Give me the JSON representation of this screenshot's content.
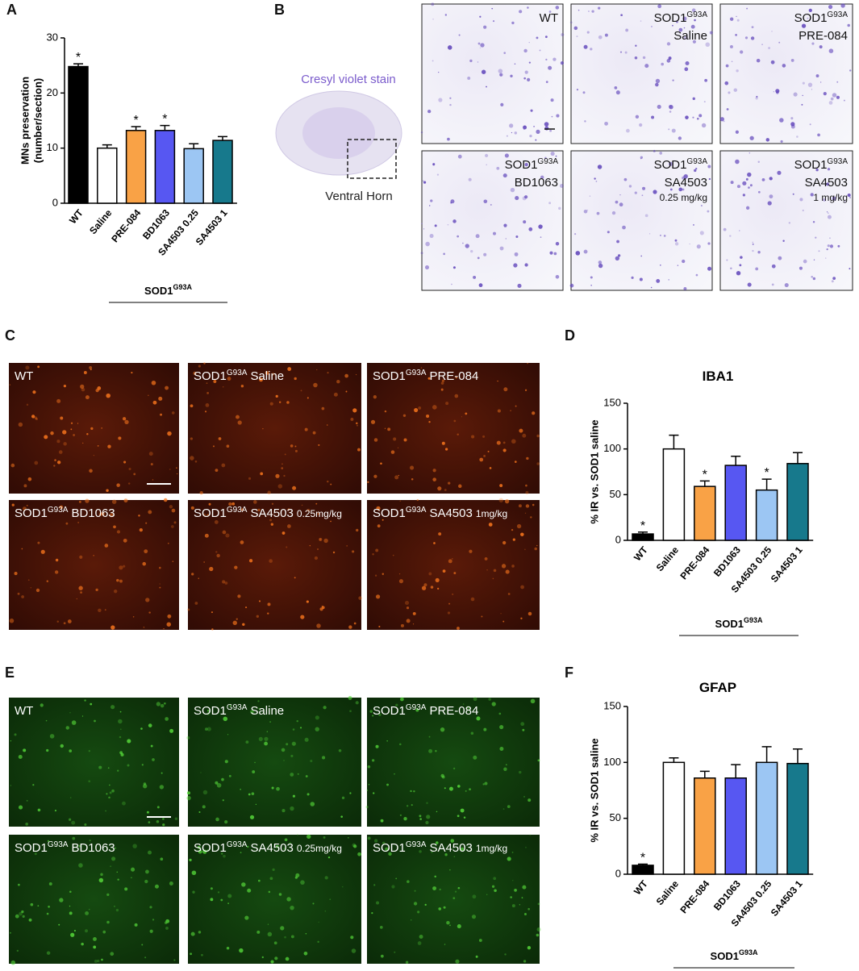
{
  "chart_data": [
    {
      "type": "bar",
      "panel": "A",
      "ylabel": [
        "MNs preservation",
        "(number/section)"
      ],
      "categories": [
        "WT",
        "Saline",
        "PRE-084",
        "BD1063",
        "SA4503 0.25",
        "SA4503 1"
      ],
      "values": [
        24.8,
        10.0,
        13.2,
        13.2,
        9.9,
        11.4
      ],
      "errors": [
        0.5,
        0.6,
        0.7,
        0.9,
        0.9,
        0.7
      ],
      "significance": [
        "*",
        null,
        "*",
        "*",
        null,
        null
      ],
      "colors": [
        "#000000",
        "#ffffff",
        "#f9a246",
        "#5757f2",
        "#9cc6f3",
        "#17798c"
      ],
      "ylim": [
        0,
        30
      ],
      "yticks": [
        0,
        10,
        20,
        30
      ],
      "group": {
        "base": "SOD1",
        "sup": "G93A"
      }
    },
    {
      "type": "bar",
      "panel": "D",
      "title": "IBA1",
      "ylabel": [
        "% IR vs. SOD1 saline"
      ],
      "categories": [
        "WT",
        "Saline",
        "PRE-084",
        "BD1063",
        "SA4503 0.25",
        "SA4503 1"
      ],
      "values": [
        7,
        100,
        59,
        82,
        55,
        84
      ],
      "errors": [
        2,
        15,
        6,
        10,
        12,
        12
      ],
      "significance": [
        "*",
        null,
        "*",
        null,
        "*",
        null
      ],
      "colors": [
        "#000000",
        "#ffffff",
        "#f9a246",
        "#5757f2",
        "#9cc6f3",
        "#17798c"
      ],
      "ylim": [
        0,
        150
      ],
      "yticks": [
        0,
        50,
        100,
        150
      ],
      "group": {
        "base": "SOD1",
        "sup": "G93A"
      }
    },
    {
      "type": "bar",
      "panel": "F",
      "title": "GFAP",
      "ylabel": [
        "% IR vs. SOD1 saline"
      ],
      "categories": [
        "WT",
        "Saline",
        "PRE-084",
        "BD1063",
        "SA4503 0.25",
        "SA4503 1"
      ],
      "values": [
        8,
        100,
        86,
        86,
        100,
        99
      ],
      "errors": [
        1,
        4,
        6,
        12,
        14,
        13
      ],
      "significance": [
        "*",
        null,
        null,
        null,
        null,
        null
      ],
      "colors": [
        "#000000",
        "#ffffff",
        "#f9a246",
        "#5757f2",
        "#9cc6f3",
        "#17798c"
      ],
      "ylim": [
        0,
        150
      ],
      "yticks": [
        0,
        50,
        100,
        150
      ],
      "group": {
        "base": "SOD1",
        "sup": "G93A"
      }
    }
  ],
  "image_panels": [
    {
      "panel": "B",
      "stain_label": "Cresyl violet stain",
      "region_label": "Ventral Horn",
      "labels": [
        {
          "base": "WT"
        },
        {
          "base": "SOD1",
          "sup": "G93A",
          "rest": "Saline"
        },
        {
          "base": "SOD1",
          "sup": "G93A",
          "rest": "PRE-084"
        },
        {
          "base": "SOD1",
          "sup": "G93A",
          "rest": "BD1063"
        },
        {
          "base": "SOD1",
          "sup": "G93A",
          "rest": "SA4503",
          "dose": "0.25 mg/kg"
        },
        {
          "base": "SOD1",
          "sup": "G93A",
          "rest": "SA4503",
          "dose": "1 mg/kg"
        }
      ]
    },
    {
      "panel": "C",
      "labels": [
        {
          "base": "WT"
        },
        {
          "base": "SOD1",
          "sup": "G93A",
          "rest": "Saline"
        },
        {
          "base": "SOD1",
          "sup": "G93A",
          "rest": "PRE-084"
        },
        {
          "base": "SOD1",
          "sup": "G93A",
          "rest": "BD1063"
        },
        {
          "base": "SOD1",
          "sup": "G93A",
          "rest": "SA4503",
          "dose": "0.25mg/kg"
        },
        {
          "base": "SOD1",
          "sup": "G93A",
          "rest": "SA4503",
          "dose": "1mg/kg"
        }
      ]
    },
    {
      "panel": "E",
      "labels": [
        {
          "base": "WT"
        },
        {
          "base": "SOD1",
          "sup": "G93A",
          "rest": "Saline"
        },
        {
          "base": "SOD1",
          "sup": "G93A",
          "rest": "PRE-084"
        },
        {
          "base": "SOD1",
          "sup": "G93A",
          "rest": "BD1063"
        },
        {
          "base": "SOD1",
          "sup": "G93A",
          "rest": "SA4503",
          "dose": "0.25mg/kg"
        },
        {
          "base": "SOD1",
          "sup": "G93A",
          "rest": "SA4503",
          "dose": "1mg/kg"
        }
      ]
    }
  ]
}
